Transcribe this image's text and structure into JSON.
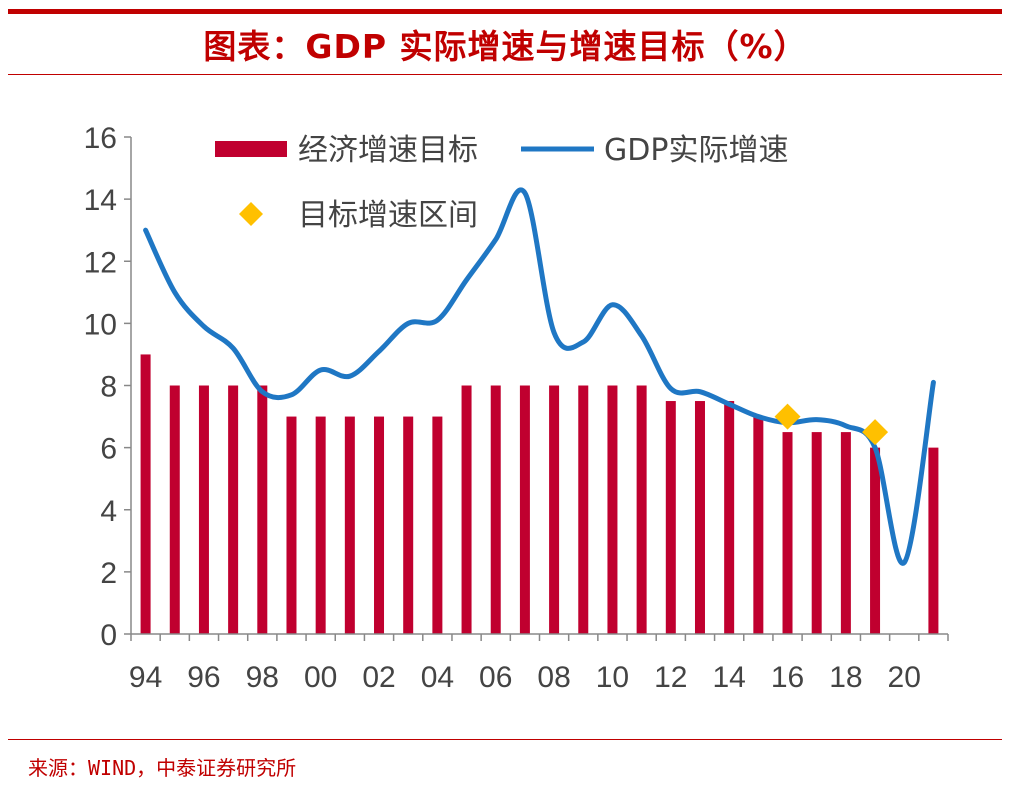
{
  "header": {
    "title": "图表：GDP 实际增速与增速目标（%）"
  },
  "footer": {
    "source": "来源：WIND，中泰证券研究所"
  },
  "colors": {
    "accent": "#c00000",
    "bar": "#c0002f",
    "line": "#1f77c4",
    "marker": "#ffc000"
  },
  "chart_data": {
    "type": "bar",
    "title": "GDP 实际增速与增速目标（%）",
    "xlabel": "",
    "ylabel": "",
    "ylim": [
      0,
      16
    ],
    "yticks": [
      "0",
      "2",
      "4",
      "6",
      "8",
      "10",
      "12",
      "14",
      "16"
    ],
    "xtick_labels": [
      "94",
      "96",
      "98",
      "00",
      "02",
      "04",
      "06",
      "08",
      "10",
      "12",
      "14",
      "16",
      "18",
      "20"
    ],
    "years": [
      1994,
      1995,
      1996,
      1997,
      1998,
      1999,
      2000,
      2001,
      2002,
      2003,
      2004,
      2005,
      2006,
      2007,
      2008,
      2009,
      2010,
      2011,
      2012,
      2013,
      2014,
      2015,
      2016,
      2017,
      2018,
      2019,
      2020,
      2021
    ],
    "legend_position": "top-left",
    "grid": false,
    "series": [
      {
        "name": "经济增速目标",
        "kind": "bar",
        "values": [
          9,
          8,
          8,
          8,
          8,
          7,
          7,
          7,
          7,
          7,
          7,
          8,
          8,
          8,
          8,
          8,
          8,
          8,
          7.5,
          7.5,
          7.5,
          7,
          6.5,
          6.5,
          6.5,
          6,
          null,
          6
        ]
      },
      {
        "name": "GDP实际增速",
        "kind": "line",
        "values": [
          13.0,
          11.0,
          9.9,
          9.2,
          7.8,
          7.7,
          8.5,
          8.3,
          9.1,
          10.0,
          10.1,
          11.4,
          12.7,
          14.2,
          9.7,
          9.4,
          10.6,
          9.6,
          7.9,
          7.8,
          7.4,
          7.0,
          6.8,
          6.9,
          6.7,
          6.0,
          2.3,
          8.1
        ]
      },
      {
        "name": "目标增速区间",
        "kind": "marker",
        "points": [
          {
            "x": 2016,
            "range": "6.5-7",
            "y": 7.0
          },
          {
            "x": 2019,
            "range": "6-6.5",
            "y": 6.5
          }
        ]
      }
    ]
  }
}
